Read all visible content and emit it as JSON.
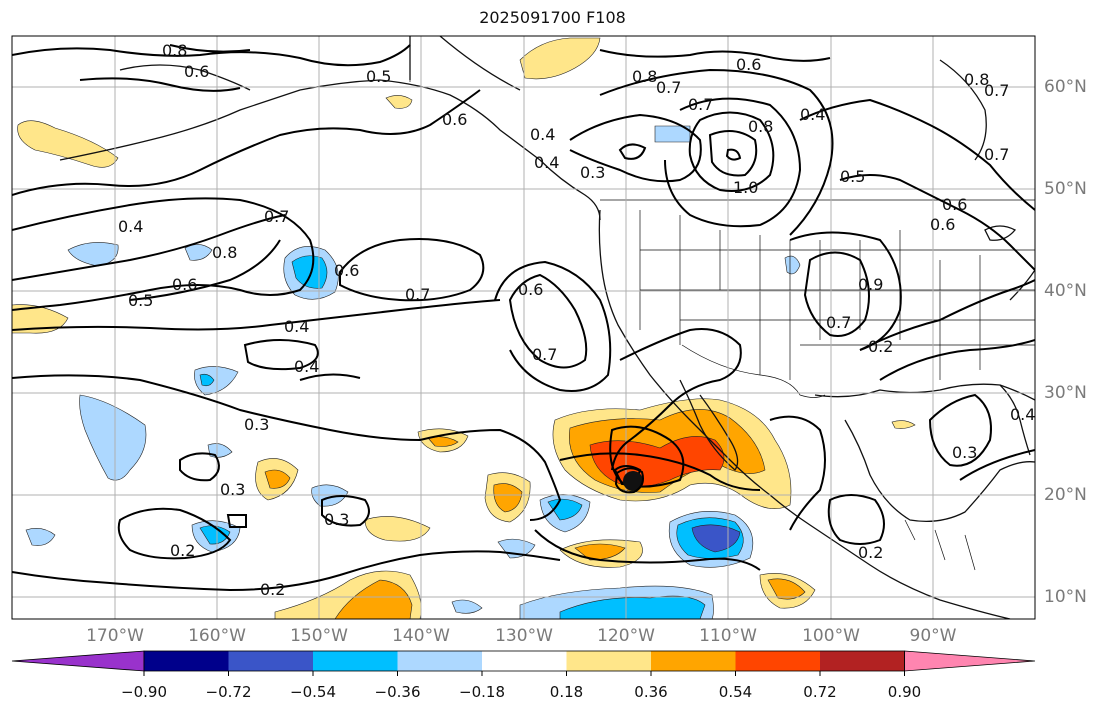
{
  "title": "2025091700 F108",
  "longitude_labels": [
    "170°W",
    "160°W",
    "150°W",
    "140°W",
    "130°W",
    "120°W",
    "110°W",
    "100°W",
    "90°W"
  ],
  "latitude_labels": [
    "60°N",
    "50°N",
    "40°N",
    "30°N",
    "20°N",
    "10°N"
  ],
  "colorbar": {
    "tick_labels": [
      "−0.90",
      "−0.72",
      "−0.54",
      "−0.36",
      "−0.18",
      "0.18",
      "0.36",
      "0.54",
      "0.72",
      "0.90"
    ],
    "colors": [
      "#9932cc",
      "#00008b",
      "#3a55c8",
      "#00bfff",
      "#add8ff",
      "#ffffff",
      "#ffe68a",
      "#ffa500",
      "#ff4500",
      "#b22222",
      "#ff85b0"
    ]
  },
  "contour_labels": [
    "0.8",
    "0.6",
    "0.5",
    "0.6",
    "0.4",
    "0.4",
    "0.3",
    "0.8",
    "0.7",
    "0.7",
    "0.6",
    "0.8",
    "0.8",
    "0.7",
    "0.4",
    "0.5",
    "1.0",
    "0.4",
    "0.8",
    "0.7",
    "0.5",
    "0.6",
    "0.6",
    "0.7",
    "0.7",
    "0.6",
    "0.4",
    "0.4",
    "0.6",
    "0.7",
    "0.6",
    "0.7",
    "0.9",
    "0.2",
    "0.3",
    "0.3",
    "0.3",
    "0.2",
    "0.2",
    "0.2",
    "0.3",
    "0.4"
  ],
  "feature_colors": {
    "land": "#111111",
    "grid": "#b0b0b0",
    "contour": "#000000",
    "marker": "#111111"
  }
}
